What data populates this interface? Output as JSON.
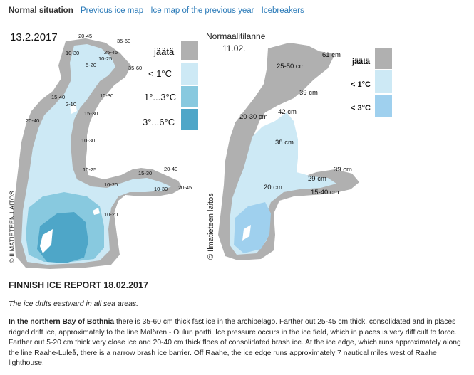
{
  "nav": {
    "tabs": [
      {
        "label": "Normal situation"
      },
      {
        "label": "Previous ice map"
      },
      {
        "label": "Ice map of the previous year"
      },
      {
        "label": "Icebreakers"
      }
    ]
  },
  "map1": {
    "date": "13.2.2017",
    "credit": "© ILMATIETEEN LAITOS",
    "legend": [
      {
        "label": "jäätä",
        "color": "#b0b0b0"
      },
      {
        "label": "< 1°C",
        "color": "#cde9f5"
      },
      {
        "label": "1°...3°C",
        "color": "#88c9df"
      },
      {
        "label": "3°...6°C",
        "color": "#4ea6c8"
      }
    ],
    "labels": [
      "20-45",
      "35-60",
      "10-30",
      "25-45",
      "10-25",
      "5-20",
      "35-60",
      "15-40",
      "2-10",
      "10-30",
      "15-30",
      "20-40",
      "10-30",
      "10-25",
      "15-30",
      "20-40",
      "10-20",
      "10-30",
      "20-45",
      "10-20"
    ]
  },
  "map2": {
    "title": "Normaalitilanne",
    "date": "11.02.",
    "credit": "© Ilmatieteen laitos",
    "legend": [
      {
        "label": "jäätä",
        "color": "#b0b0b0"
      },
      {
        "label": "< 1°C",
        "color": "#cde9f5"
      },
      {
        "label": "< 3°C",
        "color": "#9fd0ee"
      }
    ],
    "labels": [
      "61 cm",
      "25-50 cm",
      "39 cm",
      "20-30 cm",
      "42 cm",
      "38 cm",
      "39 cm",
      "29 cm",
      "20 cm",
      "15-40 cm"
    ]
  },
  "report": {
    "title": "FINNISH ICE REPORT 18.02.2017",
    "lead": "The ice drifts eastward in all sea areas.",
    "region": "In the northern Bay of Bothnia",
    "body": " there is 35-60 cm thick fast ice in the archipelago. Farther out 25-45 cm thick, consolidated and in places ridged drift ice, approximately to the line Malören - Oulun portti. Ice pressure occurs in the ice field, which in places is very difficult to force. Farther out 5-20 cm thick very close ice and 20-40 cm thick floes of consolidated brash ice. At the ice edge, which runs approximately along the line Raahe-Luleå, there is a narrow brash ice barrier. Off Raahe, the ice edge runs approximately 7 nautical miles west of Raahe lighthouse."
  }
}
